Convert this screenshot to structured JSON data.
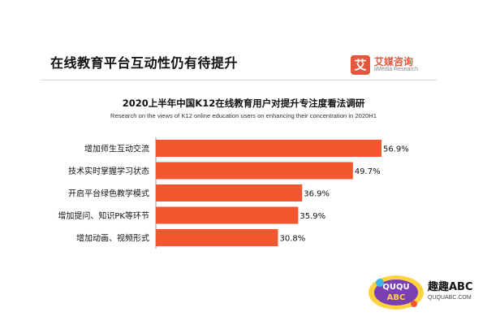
{
  "header": {
    "headline": "在线教育平台互动性仍有待提升"
  },
  "logo": {
    "mark": "艾",
    "name": "艾媒咨询",
    "sub": "iiMedia Research"
  },
  "watermark": {
    "badge": "QUQU ABC",
    "name": "趣趣ABC",
    "url": "QUQUABC.COM"
  },
  "colors": {
    "bar": "#f4572f",
    "axis": "#999999",
    "logo": "#e4573d"
  },
  "chart_data": {
    "type": "bar",
    "orientation": "horizontal",
    "title": "2020上半年中国K12在线教育用户对提升专注度看法调研",
    "subtitle": "Research on the views of K12 online education users on enhancing their concentration in 2020H1",
    "categories": [
      "增加师生互动交流",
      "技术实时掌握学习状态",
      "开启平台绿色教学模式",
      "增加提问、知识PK等环节",
      "增加动画、视频形式"
    ],
    "values": [
      56.9,
      49.7,
      36.9,
      35.9,
      30.8
    ],
    "labels": [
      "56.9%",
      "49.7%",
      "36.9%",
      "35.9%",
      "30.8%"
    ],
    "xlim": [
      0,
      56.9
    ],
    "grid": false,
    "legend": "none"
  }
}
